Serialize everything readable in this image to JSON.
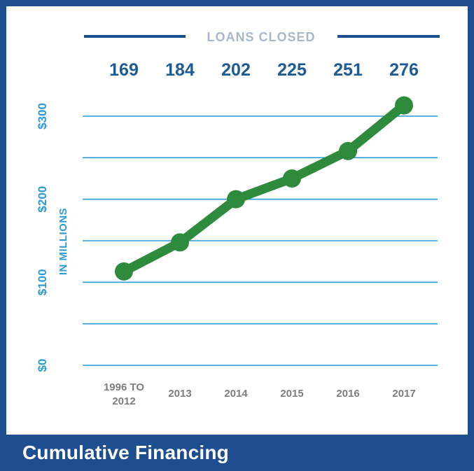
{
  "chart_data": {
    "type": "line",
    "title": "Cumulative Financing",
    "xlabel": "",
    "ylabel": "IN MILLIONS",
    "categories": [
      "1996 TO 2012",
      "2013",
      "2014",
      "2015",
      "2016",
      "2017"
    ],
    "y_tick_labels": [
      "$0",
      "$100",
      "$200",
      "$300"
    ],
    "y_tick_values": [
      0,
      100,
      200,
      300
    ],
    "ylim": [
      0,
      300
    ],
    "grid": true,
    "series": [
      {
        "values": [
          113,
          148,
          200,
          225,
          258,
          313
        ]
      }
    ],
    "annotation": {
      "title": "LOANS CLOSED",
      "values": [
        "169",
        "184",
        "202",
        "225",
        "251",
        "276"
      ]
    },
    "colors": {
      "line": "#2e8b3e",
      "grid": "#2b9ad6",
      "frame": "#1d4e8f",
      "loans_text": "#1d5a96",
      "y_text": "#2b9ad6",
      "x_text": "#7d7d7d"
    }
  },
  "footer": {
    "title": "Cumulative Financing"
  }
}
